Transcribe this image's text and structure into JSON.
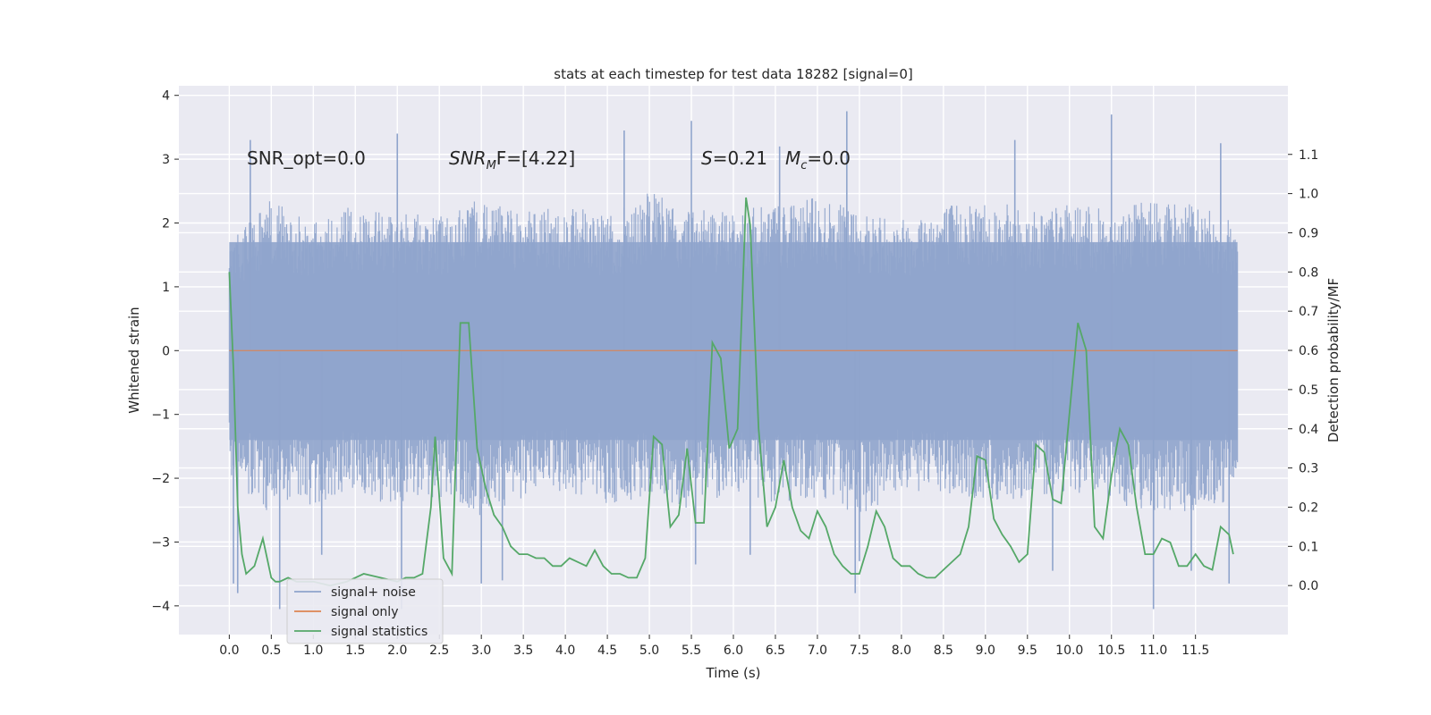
{
  "chart_data": {
    "type": "line",
    "title": "stats at each timestep for test data 18282 [signal=0]",
    "xlabel": "Time (s)",
    "ylabel": "Whitened strain",
    "ylabel_right": "Detection probability/MF",
    "xlim": [
      -0.6,
      12.6
    ],
    "ylim": [
      -4.45,
      4.15
    ],
    "ylim_right": [
      -0.125,
      1.275
    ],
    "x_ticks": [
      "0.0",
      "0.5",
      "1.0",
      "1.5",
      "2.0",
      "2.5",
      "3.0",
      "3.5",
      "4.0",
      "4.5",
      "5.0",
      "5.5",
      "6.0",
      "6.5",
      "7.0",
      "7.5",
      "8.0",
      "8.5",
      "9.0",
      "9.5",
      "10.0",
      "10.5",
      "11.0",
      "11.5"
    ],
    "y_ticks": [
      "−4",
      "−3",
      "−2",
      "−1",
      "0",
      "1",
      "2",
      "3",
      "4"
    ],
    "y_right_ticks": [
      "0.0",
      "0.1",
      "0.2",
      "0.3",
      "0.4",
      "0.5",
      "0.6",
      "0.7",
      "0.8",
      "0.9",
      "1.0",
      "1.1"
    ],
    "grid": true,
    "legend_position": "lower-left",
    "colors": {
      "noise": "#8fa4cc",
      "signal_only": "#dd8452",
      "statistics": "#55a868",
      "background": "#eaeaf2"
    },
    "annotations": {
      "snr_opt": "SNR_opt=0.0",
      "snr_mf_base": "SNR",
      "snr_mf_sub": "M",
      "snr_mf_rest": "F=[4.22]",
      "s_label": "S",
      "s_value": "=0.21",
      "mc_base": "M",
      "mc_sub": "c",
      "mc_value": "=0.0"
    },
    "series": [
      {
        "name": "signal+ noise",
        "kind": "noise",
        "x_range": [
          0.0,
          12.0
        ],
        "envelope_upper": [
          1.7,
          2.4,
          2.0,
          2.3,
          2.2,
          2.1,
          2.4,
          2.2,
          2.3,
          2.1,
          2.5,
          2.3,
          2.2,
          2.3,
          2.4,
          2.2,
          2.1,
          2.3,
          2.4,
          2.2,
          2.3,
          2.2,
          2.4,
          2.3,
          2.0
        ],
        "envelope_lower": [
          -2.0,
          -2.6,
          -2.4,
          -2.2,
          -2.5,
          -2.3,
          -2.6,
          -2.3,
          -2.2,
          -2.4,
          -2.3,
          -2.5,
          -2.2,
          -2.4,
          -2.3,
          -2.6,
          -2.2,
          -2.3,
          -2.4,
          -2.3,
          -2.2,
          -2.4,
          -2.5,
          -2.6,
          -2.3
        ],
        "spikes": [
          {
            "x": 0.05,
            "y": -3.65
          },
          {
            "x": 0.1,
            "y": -3.8
          },
          {
            "x": 0.25,
            "y": 3.3
          },
          {
            "x": 0.6,
            "y": -4.05
          },
          {
            "x": 2.0,
            "y": 3.4
          },
          {
            "x": 2.05,
            "y": -4.05
          },
          {
            "x": 3.0,
            "y": -3.65
          },
          {
            "x": 3.25,
            "y": -3.6
          },
          {
            "x": 4.7,
            "y": 3.45
          },
          {
            "x": 5.5,
            "y": 3.6
          },
          {
            "x": 5.55,
            "y": -3.35
          },
          {
            "x": 6.2,
            "y": -3.2
          },
          {
            "x": 7.35,
            "y": 3.75
          },
          {
            "x": 7.45,
            "y": -3.8
          },
          {
            "x": 7.5,
            "y": -3.3
          },
          {
            "x": 9.35,
            "y": 3.3
          },
          {
            "x": 9.8,
            "y": -3.45
          },
          {
            "x": 10.5,
            "y": 3.7
          },
          {
            "x": 11.0,
            "y": -4.05
          },
          {
            "x": 11.45,
            "y": -3.45
          },
          {
            "x": 11.8,
            "y": 3.25
          },
          {
            "x": 11.9,
            "y": -3.65
          },
          {
            "x": 1.1,
            "y": -3.2
          },
          {
            "x": 6.55,
            "y": 3.2
          }
        ]
      },
      {
        "name": "signal only",
        "kind": "line",
        "x": [
          0.0,
          12.0
        ],
        "y": [
          0.0,
          0.0
        ]
      },
      {
        "name": "signal statistics",
        "kind": "line_right",
        "x": [
          0.0,
          0.05,
          0.1,
          0.15,
          0.2,
          0.3,
          0.4,
          0.5,
          0.55,
          0.6,
          0.7,
          0.8,
          0.9,
          1.0,
          1.2,
          1.4,
          1.6,
          1.8,
          2.0,
          2.1,
          2.2,
          2.3,
          2.4,
          2.45,
          2.55,
          2.65,
          2.75,
          2.85,
          2.95,
          3.05,
          3.15,
          3.25,
          3.35,
          3.45,
          3.55,
          3.65,
          3.75,
          3.85,
          3.95,
          4.05,
          4.15,
          4.25,
          4.35,
          4.45,
          4.55,
          4.65,
          4.75,
          4.85,
          4.95,
          5.05,
          5.15,
          5.25,
          5.35,
          5.45,
          5.55,
          5.65,
          5.75,
          5.85,
          5.95,
          6.05,
          6.15,
          6.2,
          6.3,
          6.4,
          6.5,
          6.6,
          6.7,
          6.8,
          6.9,
          7.0,
          7.1,
          7.2,
          7.3,
          7.4,
          7.5,
          7.6,
          7.7,
          7.8,
          7.9,
          8.0,
          8.1,
          8.2,
          8.3,
          8.4,
          8.5,
          8.6,
          8.7,
          8.8,
          8.9,
          9.0,
          9.1,
          9.2,
          9.3,
          9.4,
          9.5,
          9.6,
          9.7,
          9.8,
          9.9,
          10.0,
          10.1,
          10.2,
          10.3,
          10.4,
          10.5,
          10.6,
          10.7,
          10.8,
          10.9,
          11.0,
          11.1,
          11.2,
          11.3,
          11.4,
          11.5,
          11.6,
          11.7,
          11.8,
          11.9,
          11.95
        ],
        "y": [
          0.8,
          0.55,
          0.2,
          0.08,
          0.03,
          0.05,
          0.12,
          0.02,
          0.01,
          0.01,
          0.02,
          0.01,
          0.01,
          0.01,
          0.0,
          0.01,
          0.03,
          0.02,
          0.01,
          0.02,
          0.02,
          0.03,
          0.2,
          0.38,
          0.07,
          0.03,
          0.67,
          0.67,
          0.35,
          0.25,
          0.18,
          0.15,
          0.1,
          0.08,
          0.08,
          0.07,
          0.07,
          0.05,
          0.05,
          0.07,
          0.06,
          0.05,
          0.09,
          0.05,
          0.03,
          0.03,
          0.02,
          0.02,
          0.07,
          0.38,
          0.36,
          0.15,
          0.18,
          0.35,
          0.16,
          0.16,
          0.62,
          0.58,
          0.35,
          0.4,
          0.99,
          0.92,
          0.4,
          0.15,
          0.2,
          0.32,
          0.2,
          0.14,
          0.12,
          0.19,
          0.15,
          0.08,
          0.05,
          0.03,
          0.03,
          0.1,
          0.19,
          0.15,
          0.07,
          0.05,
          0.05,
          0.03,
          0.02,
          0.02,
          0.04,
          0.06,
          0.08,
          0.15,
          0.33,
          0.32,
          0.17,
          0.13,
          0.1,
          0.06,
          0.08,
          0.36,
          0.34,
          0.22,
          0.21,
          0.44,
          0.67,
          0.6,
          0.15,
          0.12,
          0.28,
          0.4,
          0.36,
          0.2,
          0.08,
          0.08,
          0.12,
          0.11,
          0.05,
          0.05,
          0.08,
          0.05,
          0.04,
          0.15,
          0.13,
          0.08
        ]
      }
    ]
  }
}
